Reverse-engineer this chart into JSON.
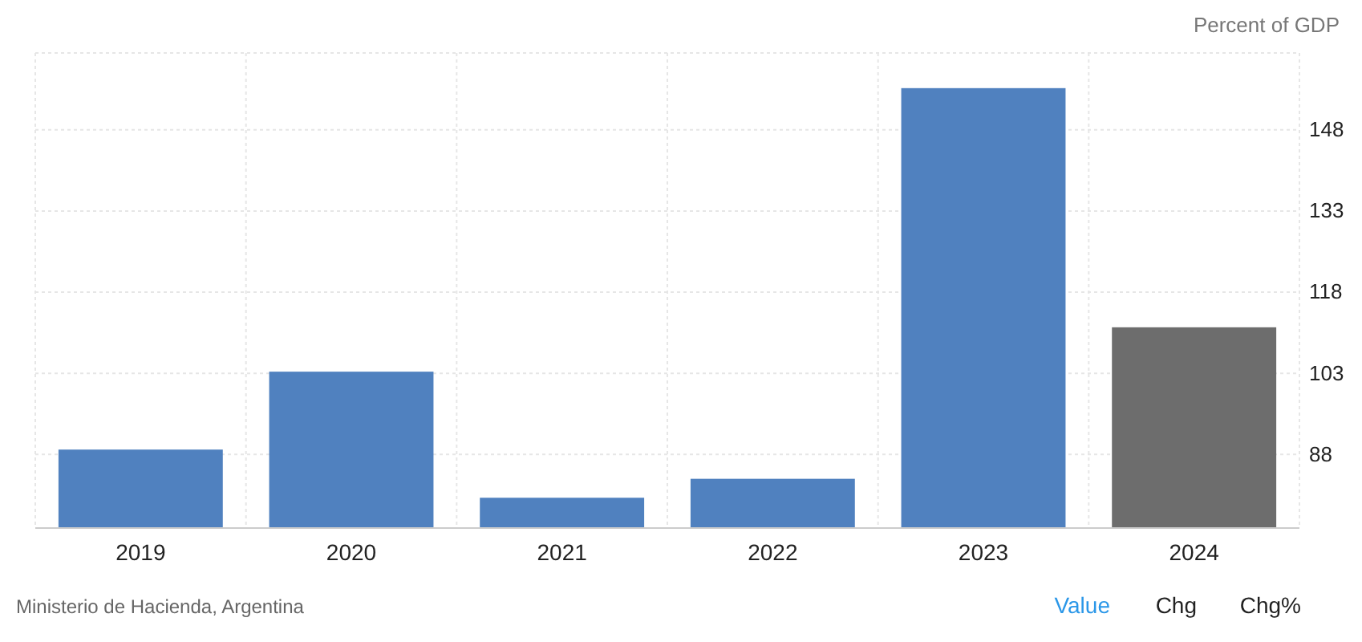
{
  "chart_data": {
    "type": "bar",
    "ylabel": "Percent of GDP",
    "categories": [
      "2019",
      "2020",
      "2021",
      "2022",
      "2023",
      "2024"
    ],
    "values": [
      88.9,
      103.3,
      80.0,
      83.5,
      155.7,
      111.5
    ],
    "colors": [
      "#5081bf",
      "#5081bf",
      "#5081bf",
      "#5081bf",
      "#5081bf",
      "#6d6d6d"
    ],
    "ylim": [
      74.4,
      162.2
    ],
    "yticks": [
      88,
      103,
      118,
      133,
      148
    ],
    "grid": true,
    "annotations": [
      "Ministerio de Hacienda, Argentina",
      "Value",
      "Chg",
      "Chg%"
    ]
  }
}
